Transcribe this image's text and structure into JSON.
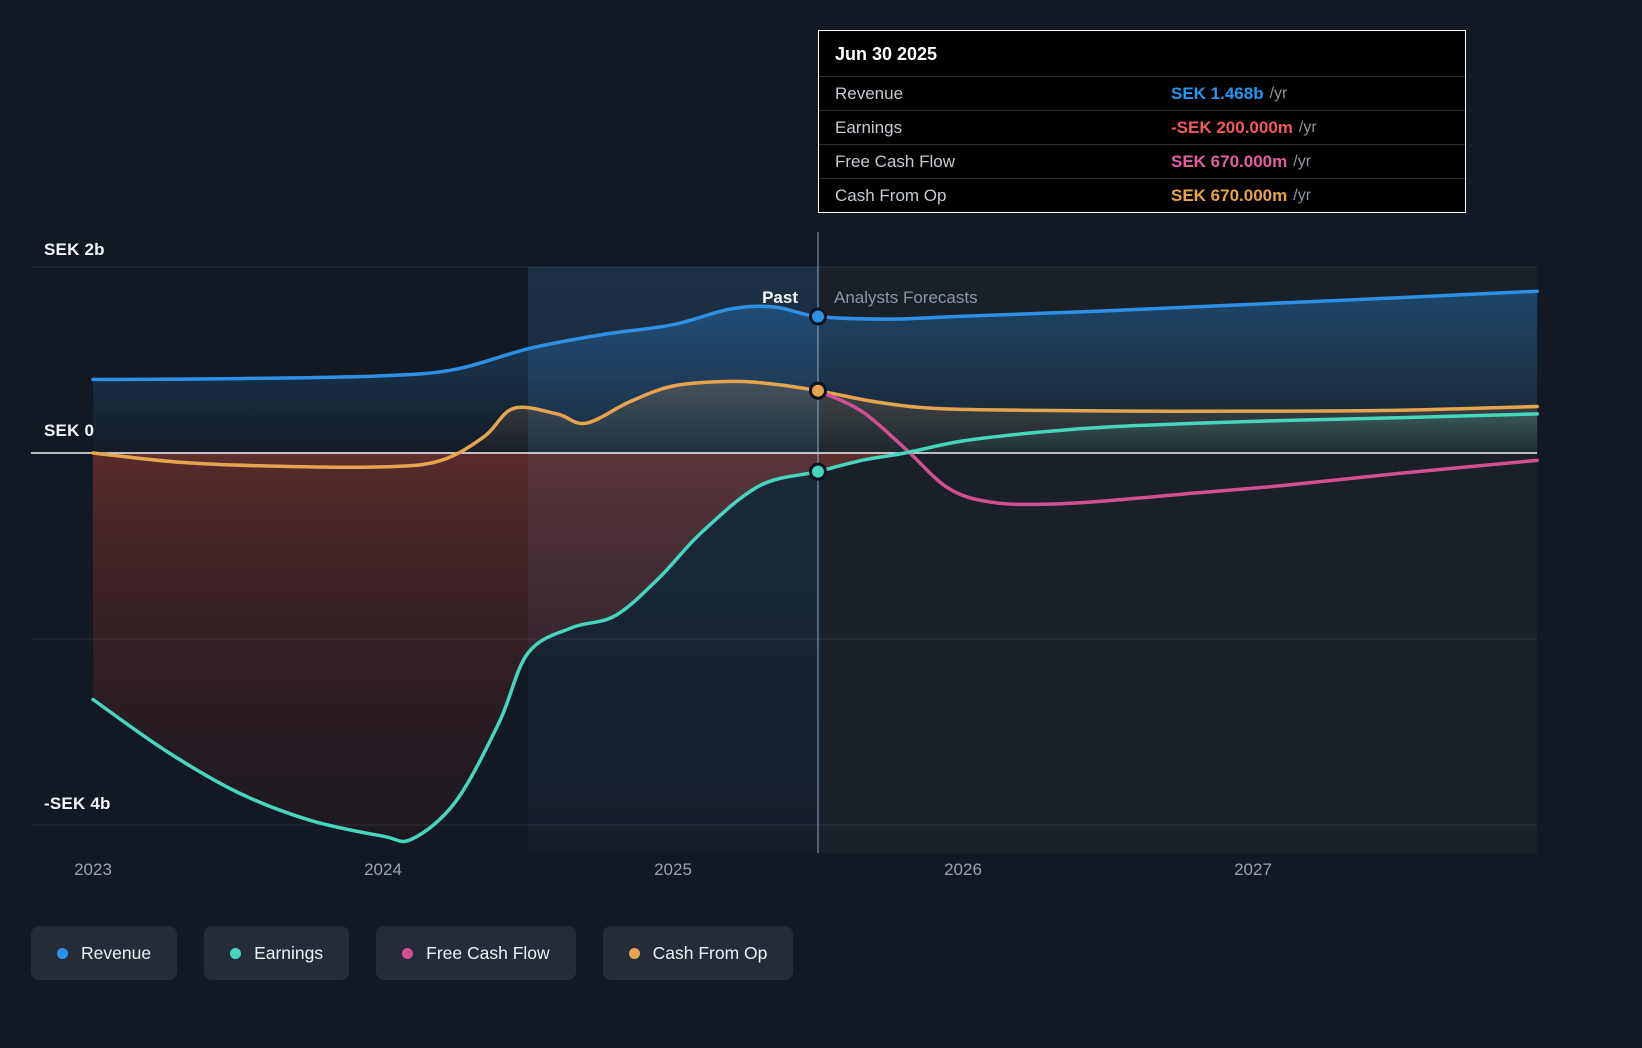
{
  "tooltip": {
    "date": "Jun 30 2025",
    "rows": [
      {
        "label": "Revenue",
        "value": "SEK 1.468b",
        "unit": "/yr",
        "color": "#2196f3"
      },
      {
        "label": "Earnings",
        "value": "-SEK 200.000m",
        "unit": "/yr",
        "color": "#f25a5a"
      },
      {
        "label": "Free Cash Flow",
        "value": "SEK 670.000m",
        "unit": "/yr",
        "color": "#e05fa0"
      },
      {
        "label": "Cash From Op",
        "value": "SEK 670.000m",
        "unit": "/yr",
        "color": "#e8a44a"
      }
    ]
  },
  "annotations": {
    "past": "Past",
    "forecast": "Analysts Forecasts"
  },
  "axis": {
    "y_labels": [
      {
        "text": "SEK 2b",
        "value": 2
      },
      {
        "text": "SEK 0",
        "value": 0
      },
      {
        "text": "-SEK 4b",
        "value": -4
      }
    ],
    "x_labels": [
      "2023",
      "2024",
      "2025",
      "2026",
      "2027"
    ]
  },
  "legend": {
    "items": [
      {
        "label": "Revenue",
        "color": "#2e90e5"
      },
      {
        "label": "Earnings",
        "color": "#46d6bd"
      },
      {
        "label": "Free Cash Flow",
        "color": "#d44f92"
      },
      {
        "label": "Cash From Op",
        "color": "#e5a54f"
      }
    ]
  },
  "chart_data": {
    "type": "line",
    "unit": "SEK billions per year",
    "x_unit": "year",
    "x_ticks": [
      2023,
      2024,
      2025,
      2026,
      2027
    ],
    "y_ticks": [
      {
        "value": 2,
        "label": "SEK 2b"
      },
      {
        "value": 0,
        "label": "SEK 0"
      },
      {
        "value": -2,
        "label": ""
      },
      {
        "value": -4,
        "label": "-SEK 4b"
      }
    ],
    "ylim": [
      -4.6,
      2.2
    ],
    "xlim": [
      2022.8,
      2028.0
    ],
    "divider_x": 2025.5,
    "divider_date": "Jun 30 2025",
    "highlight_band": [
      2024.5,
      2025.5
    ],
    "grid": "horizontal",
    "legend_position": "bottom",
    "series": [
      {
        "name": "Revenue",
        "color": "#2e90e5",
        "x": [
          2023,
          2023.5,
          2024,
          2024.25,
          2024.5,
          2024.75,
          2025,
          2025.2,
          2025.35,
          2025.5,
          2025.75,
          2026,
          2026.5,
          2027,
          2027.5,
          2027.98
        ],
        "y": [
          0.79,
          0.8,
          0.83,
          0.9,
          1.12,
          1.27,
          1.38,
          1.55,
          1.57,
          1.468,
          1.44,
          1.47,
          1.53,
          1.6,
          1.67,
          1.74
        ]
      },
      {
        "name": "Earnings",
        "color": "#46d6bd",
        "x": [
          2023,
          2023.25,
          2023.5,
          2023.75,
          2024,
          2024.1,
          2024.25,
          2024.4,
          2024.5,
          2024.65,
          2024.8,
          2024.95,
          2025.1,
          2025.3,
          2025.5,
          2025.65,
          2025.8,
          2026,
          2026.25,
          2026.5,
          2027,
          2027.5,
          2027.98
        ],
        "y": [
          -2.65,
          -3.2,
          -3.65,
          -3.95,
          -4.12,
          -4.15,
          -3.75,
          -2.9,
          -2.15,
          -1.88,
          -1.75,
          -1.35,
          -0.85,
          -0.35,
          -0.2,
          -0.08,
          0,
          0.13,
          0.22,
          0.28,
          0.34,
          0.38,
          0.42
        ]
      },
      {
        "name": "Free Cash Flow",
        "color": "#d44f92",
        "x": [
          2025.5,
          2025.65,
          2025.8,
          2025.95,
          2026.1,
          2026.3,
          2026.55,
          2026.8,
          2027.1,
          2027.5,
          2027.98
        ],
        "y": [
          0.67,
          0.45,
          0.05,
          -0.38,
          -0.53,
          -0.55,
          -0.5,
          -0.43,
          -0.35,
          -0.22,
          -0.08
        ]
      },
      {
        "name": "Cash From Op",
        "color": "#e5a54f",
        "x": [
          2023,
          2023.3,
          2023.6,
          2024,
          2024.2,
          2024.35,
          2024.45,
          2024.6,
          2024.7,
          2024.85,
          2025,
          2025.2,
          2025.35,
          2025.5,
          2025.7,
          2025.9,
          2026.2,
          2026.6,
          2027,
          2027.5,
          2027.98
        ],
        "y": [
          0.0,
          -0.1,
          -0.14,
          -0.15,
          -0.08,
          0.18,
          0.48,
          0.42,
          0.32,
          0.55,
          0.72,
          0.77,
          0.74,
          0.67,
          0.55,
          0.48,
          0.46,
          0.45,
          0.45,
          0.46,
          0.5
        ]
      }
    ],
    "markers": [
      {
        "series": "Free Cash Flow",
        "x": 2025.5,
        "y": 0.67
      },
      {
        "series": "Cash From Op",
        "x": 2025.5,
        "y": 0.67
      },
      {
        "series": "Earnings",
        "x": 2025.5,
        "y": -0.2
      },
      {
        "series": "Revenue",
        "x": 2025.5,
        "y": 1.468
      }
    ]
  }
}
